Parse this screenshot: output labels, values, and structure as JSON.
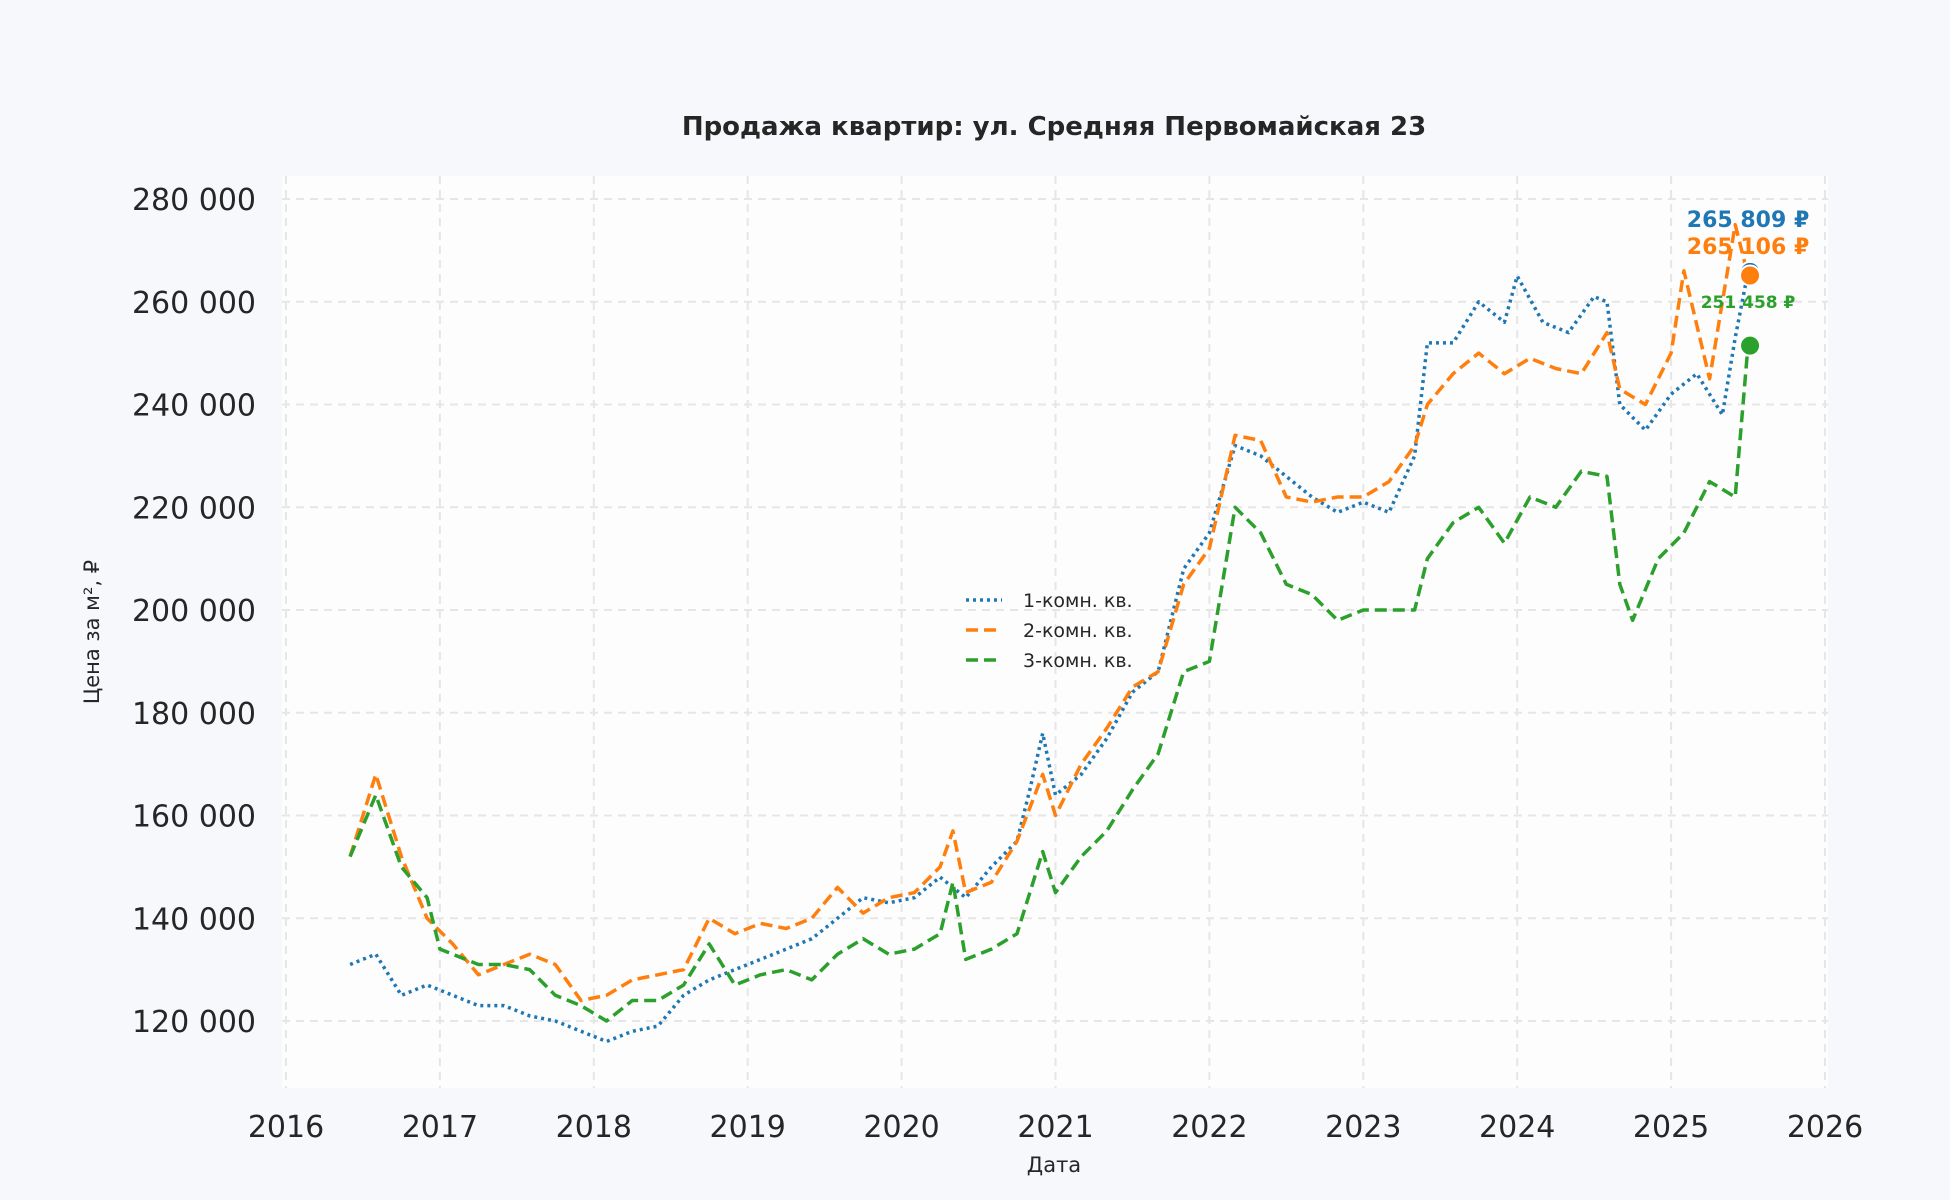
{
  "chart_data": {
    "type": "line",
    "title": "Продажа квартир: ул. Средняя Первомайская 23",
    "xlabel": "Дата",
    "ylabel": "Цена за м², ₽",
    "xlim": [
      "2016-01",
      "2026-01"
    ],
    "ylim": [
      107000,
      284000
    ],
    "x_ticks": [
      "2016",
      "2017",
      "2018",
      "2019",
      "2020",
      "2021",
      "2022",
      "2023",
      "2024",
      "2025",
      "2026"
    ],
    "y_ticks": [
      120000,
      140000,
      160000,
      180000,
      200000,
      220000,
      240000,
      260000,
      280000
    ],
    "y_tick_labels": [
      "120 000",
      "140 000",
      "160 000",
      "180 000",
      "200 000",
      "220 000",
      "240 000",
      "260 000",
      "280 000"
    ],
    "grid": true,
    "legend_placement": "center",
    "series": [
      {
        "name": "1-комн. кв.",
        "color": "#1f77b4",
        "style": "dotted",
        "end_label": "265 809 ₽",
        "end_value": 265809,
        "x": [
          "2016-06",
          "2016-08",
          "2016-10",
          "2016-12",
          "2017-02",
          "2017-04",
          "2017-06",
          "2017-08",
          "2017-10",
          "2017-12",
          "2018-02",
          "2018-04",
          "2018-06",
          "2018-08",
          "2018-10",
          "2018-12",
          "2019-02",
          "2019-04",
          "2019-06",
          "2019-08",
          "2019-10",
          "2019-12",
          "2020-02",
          "2020-04",
          "2020-06",
          "2020-08",
          "2020-10",
          "2020-11",
          "2020-12",
          "2021-01",
          "2021-03",
          "2021-05",
          "2021-07",
          "2021-09",
          "2021-11",
          "2022-01",
          "2022-03",
          "2022-05",
          "2022-07",
          "2022-09",
          "2022-11",
          "2023-01",
          "2023-03",
          "2023-05",
          "2023-06",
          "2023-08",
          "2023-10",
          "2023-12",
          "2024-01",
          "2024-03",
          "2024-05",
          "2024-07",
          "2024-08",
          "2024-09",
          "2024-11",
          "2025-01",
          "2025-03",
          "2025-05",
          "2025-06",
          "2025-07"
        ],
        "y": [
          131000,
          133000,
          125000,
          127000,
          125000,
          123000,
          123000,
          121000,
          120000,
          118000,
          116000,
          118000,
          119000,
          125000,
          128000,
          130000,
          132000,
          134000,
          136000,
          140000,
          144000,
          143000,
          144000,
          148000,
          144000,
          150000,
          155000,
          165000,
          176000,
          164000,
          168000,
          175000,
          184000,
          188000,
          208000,
          215000,
          232000,
          230000,
          226000,
          222000,
          219000,
          221000,
          219000,
          230000,
          252000,
          252000,
          260000,
          256000,
          265000,
          256000,
          254000,
          261000,
          260000,
          240000,
          235000,
          242000,
          246000,
          238000,
          253000,
          265809
        ]
      },
      {
        "name": "2-комн. кв.",
        "color": "#ff7f0e",
        "style": "dashed",
        "end_label": "265 106 ₽",
        "end_value": 265106,
        "x": [
          "2016-06",
          "2016-08",
          "2016-10",
          "2016-12",
          "2017-02",
          "2017-04",
          "2017-06",
          "2017-08",
          "2017-10",
          "2017-12",
          "2018-02",
          "2018-04",
          "2018-06",
          "2018-08",
          "2018-10",
          "2018-12",
          "2019-02",
          "2019-04",
          "2019-06",
          "2019-08",
          "2019-10",
          "2019-12",
          "2020-02",
          "2020-04",
          "2020-05",
          "2020-06",
          "2020-08",
          "2020-10",
          "2020-12",
          "2021-01",
          "2021-03",
          "2021-05",
          "2021-07",
          "2021-09",
          "2021-11",
          "2022-01",
          "2022-03",
          "2022-05",
          "2022-07",
          "2022-09",
          "2022-11",
          "2023-01",
          "2023-03",
          "2023-05",
          "2023-06",
          "2023-08",
          "2023-10",
          "2023-12",
          "2024-02",
          "2024-04",
          "2024-06",
          "2024-08",
          "2024-09",
          "2024-11",
          "2025-01",
          "2025-02",
          "2025-04",
          "2025-06",
          "2025-07"
        ],
        "y": [
          152000,
          168000,
          152000,
          140000,
          135000,
          129000,
          131000,
          133000,
          131000,
          124000,
          125000,
          128000,
          129000,
          130000,
          140000,
          137000,
          139000,
          138000,
          140000,
          146000,
          141000,
          144000,
          145000,
          150000,
          157000,
          145000,
          147000,
          155000,
          168000,
          160000,
          170000,
          177000,
          185000,
          188000,
          205000,
          212000,
          234000,
          233000,
          222000,
          221000,
          222000,
          222000,
          225000,
          232000,
          240000,
          246000,
          250000,
          246000,
          249000,
          247000,
          246000,
          254000,
          243000,
          240000,
          250000,
          266000,
          245000,
          275000,
          265106
        ]
      },
      {
        "name": "3-комн. кв.",
        "color": "#2ca02c",
        "style": "dashed",
        "end_label": "251 458 ₽",
        "end_value": 251458,
        "x": [
          "2016-06",
          "2016-08",
          "2016-10",
          "2016-12",
          "2017-01",
          "2017-04",
          "2017-06",
          "2017-08",
          "2017-10",
          "2017-12",
          "2018-02",
          "2018-04",
          "2018-06",
          "2018-08",
          "2018-10",
          "2018-12",
          "2019-02",
          "2019-04",
          "2019-06",
          "2019-08",
          "2019-10",
          "2019-12",
          "2020-02",
          "2020-04",
          "2020-05",
          "2020-06",
          "2020-08",
          "2020-10",
          "2020-12",
          "2021-01",
          "2021-03",
          "2021-05",
          "2021-07",
          "2021-09",
          "2021-11",
          "2022-01",
          "2022-03",
          "2022-05",
          "2022-07",
          "2022-09",
          "2022-11",
          "2023-01",
          "2023-03",
          "2023-05",
          "2023-06",
          "2023-08",
          "2023-10",
          "2023-12",
          "2024-02",
          "2024-04",
          "2024-06",
          "2024-08",
          "2024-09",
          "2024-10",
          "2024-12",
          "2025-02",
          "2025-04",
          "2025-06",
          "2025-07"
        ],
        "y": [
          152000,
          164000,
          150000,
          144000,
          134000,
          131000,
          131000,
          130000,
          125000,
          123000,
          120000,
          124000,
          124000,
          127000,
          135000,
          127000,
          129000,
          130000,
          128000,
          133000,
          136000,
          133000,
          134000,
          137000,
          147000,
          132000,
          134000,
          137000,
          153000,
          145000,
          152000,
          157000,
          165000,
          172000,
          188000,
          190000,
          220000,
          215000,
          205000,
          203000,
          198000,
          200000,
          200000,
          200000,
          210000,
          217000,
          220000,
          213000,
          222000,
          220000,
          227000,
          226000,
          205000,
          198000,
          210000,
          215000,
          225000,
          222000,
          251458
        ]
      }
    ]
  }
}
